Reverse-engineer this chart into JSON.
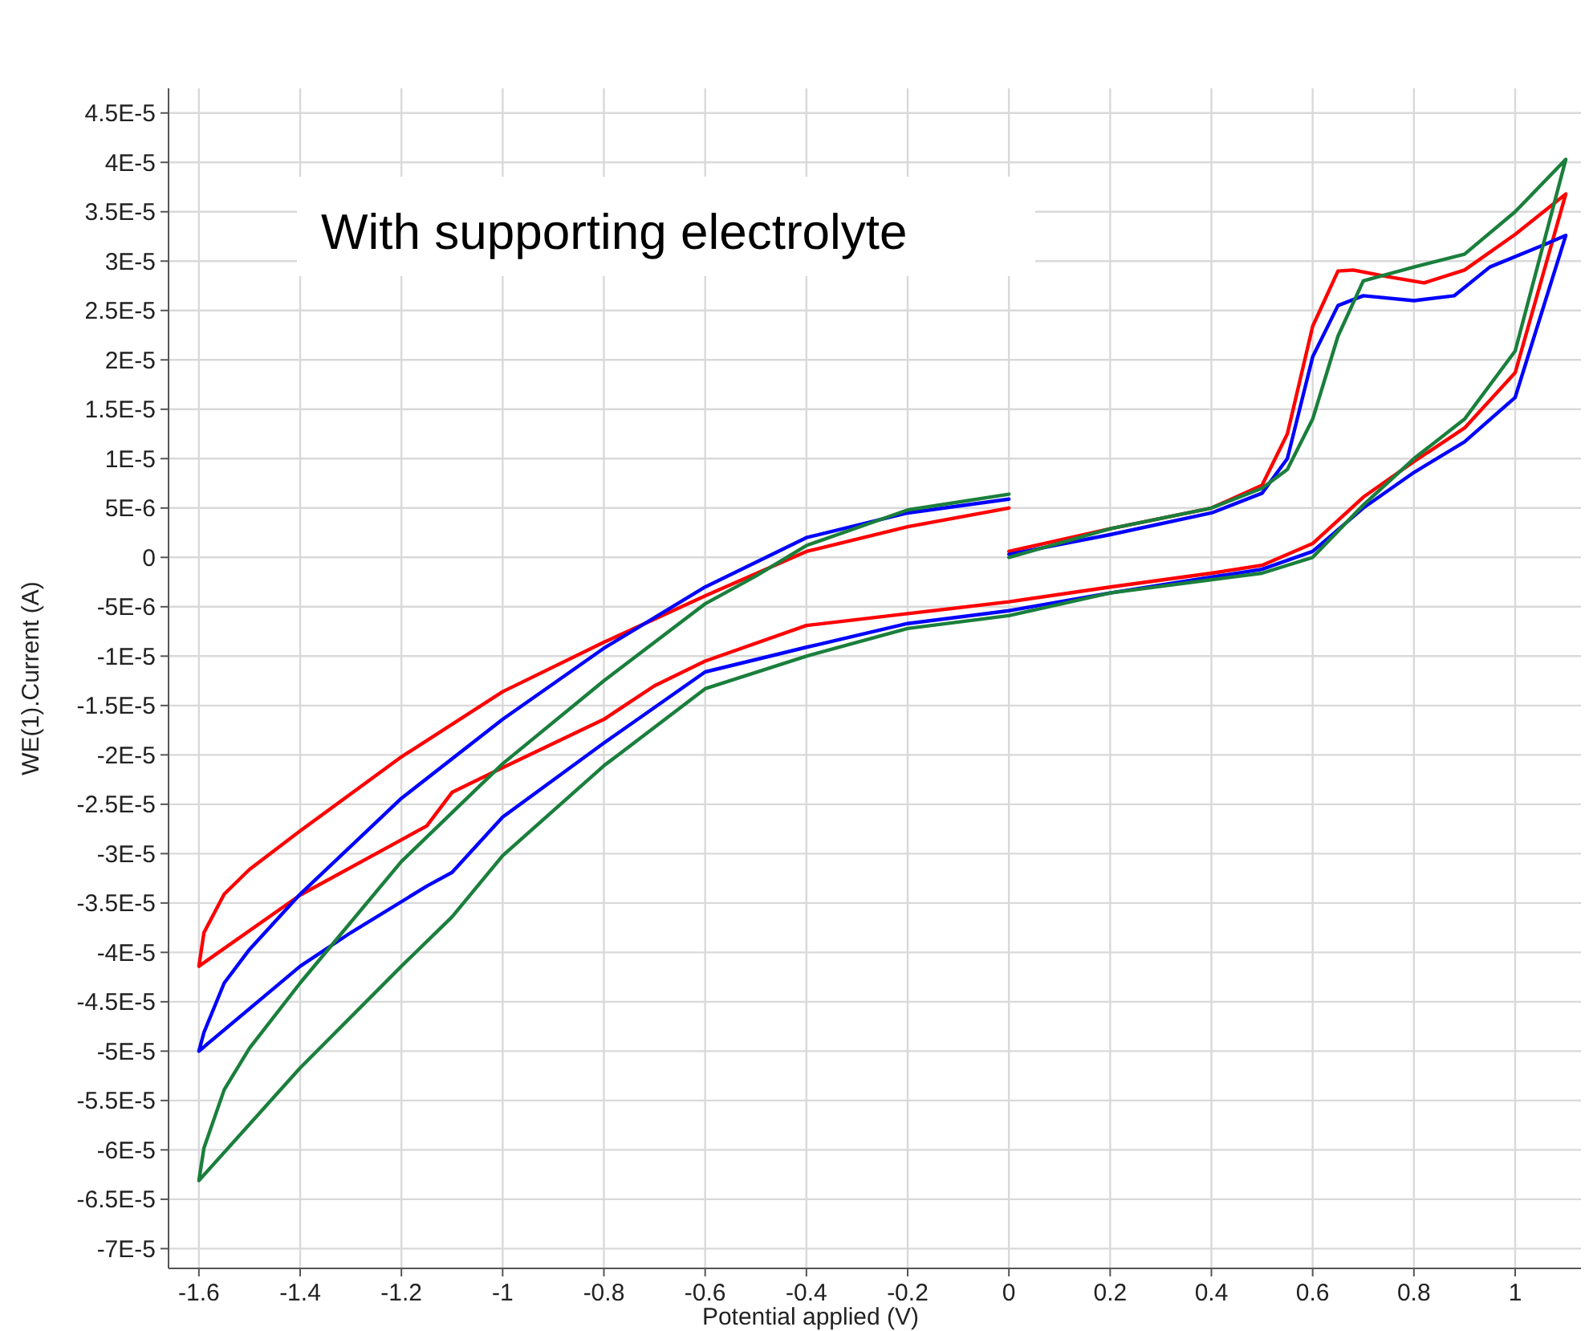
{
  "chart_data": {
    "type": "line",
    "xlabel": "Potential applied (V)",
    "ylabel": "WE(1).Current (A)",
    "annotations": [
      "With supporting electrolyte"
    ],
    "xlim": [
      -1.66,
      1.13
    ],
    "ylim": [
      -7.2e-05,
      4.75e-05
    ],
    "xticks": [
      -1.6,
      -1.4,
      -1.2,
      -1,
      -0.8,
      -0.6,
      -0.4,
      -0.2,
      0,
      0.2,
      0.4,
      0.6,
      0.8,
      1
    ],
    "yticks": [
      {
        "value": 4.5e-05,
        "label": "4.5E-5"
      },
      {
        "value": 4e-05,
        "label": "4E-5"
      },
      {
        "value": 3.5e-05,
        "label": "3.5E-5"
      },
      {
        "value": 3e-05,
        "label": "3E-5"
      },
      {
        "value": 2.5e-05,
        "label": "2.5E-5"
      },
      {
        "value": 2e-05,
        "label": "2E-5"
      },
      {
        "value": 1.5e-05,
        "label": "1.5E-5"
      },
      {
        "value": 1e-05,
        "label": "1E-5"
      },
      {
        "value": 5e-06,
        "label": "5E-6"
      },
      0,
      {
        "value": -5e-06,
        "label": "-5E-6"
      },
      {
        "value": -1e-05,
        "label": "-1E-5"
      },
      {
        "value": -1.5e-05,
        "label": "-1.5E-5"
      },
      {
        "value": -2e-05,
        "label": "-2E-5"
      },
      {
        "value": -2.5e-05,
        "label": "-2.5E-5"
      },
      {
        "value": -3e-05,
        "label": "-3E-5"
      },
      {
        "value": -3.5e-05,
        "label": "-3.5E-5"
      },
      {
        "value": -4e-05,
        "label": "-4E-5"
      },
      {
        "value": -4.5e-05,
        "label": "-4.5E-5"
      },
      {
        "value": -5e-05,
        "label": "-5E-5"
      },
      {
        "value": -5.5e-05,
        "label": "-5.5E-5"
      },
      {
        "value": -6e-05,
        "label": "-6E-5"
      },
      {
        "value": -6.5e-05,
        "label": "-6.5E-5"
      },
      {
        "value": -7e-05,
        "label": "-7E-5"
      }
    ],
    "grid": true,
    "marker": "none",
    "line_style": "solid",
    "series": [
      {
        "color": "#ff0000",
        "x": [
          0,
          0.2,
          0.4,
          0.5,
          0.55,
          0.6,
          0.65,
          0.68,
          0.75,
          0.82,
          0.9,
          1.0,
          1.1,
          1.0,
          0.9,
          0.8,
          0.7,
          0.6,
          0.5,
          0.4,
          0.2,
          0,
          -0.2,
          -0.4,
          -0.6,
          -0.7,
          -0.8,
          -1.0,
          -1.1,
          -1.15,
          -1.2,
          -1.4,
          -1.6,
          -1.59,
          -1.55,
          -1.5,
          -1.4,
          -1.2,
          -1.0,
          -0.8,
          -0.6,
          -0.4,
          -0.2,
          0
        ],
        "values": [
          6e-07,
          2.9e-06,
          5e-06,
          7.3e-06,
          1.25e-05,
          2.34e-05,
          2.9e-05,
          2.91e-05,
          2.84e-05,
          2.78e-05,
          2.91e-05,
          3.27e-05,
          3.68e-05,
          1.87e-05,
          1.31e-05,
          9.7e-06,
          6.1e-06,
          1.4e-06,
          -8e-07,
          -1.6e-06,
          -3e-06,
          -4.5e-06,
          -5.7e-06,
          -6.9e-06,
          -1.05e-05,
          -1.3e-05,
          -1.64e-05,
          -2.13e-05,
          -2.38e-05,
          -2.72e-05,
          -2.86e-05,
          -3.42e-05,
          -4.14e-05,
          -3.8e-05,
          -3.41e-05,
          -3.16e-05,
          -2.77e-05,
          -2.02e-05,
          -1.36e-05,
          -8.6e-06,
          -3.9e-06,
          6e-07,
          3.1e-06,
          5e-06
        ]
      },
      {
        "color": "#0000ff",
        "x": [
          0,
          0.2,
          0.4,
          0.5,
          0.55,
          0.6,
          0.65,
          0.7,
          0.8,
          0.88,
          0.95,
          1.05,
          1.1,
          1.0,
          0.9,
          0.8,
          0.7,
          0.6,
          0.5,
          0.2,
          0,
          -0.2,
          -0.4,
          -0.6,
          -0.8,
          -1.0,
          -1.1,
          -1.15,
          -1.3,
          -1.4,
          -1.6,
          -1.59,
          -1.55,
          -1.5,
          -1.4,
          -1.2,
          -1.0,
          -0.8,
          -0.6,
          -0.4,
          -0.2,
          0
        ],
        "values": [
          3e-07,
          2.3e-06,
          4.5e-06,
          6.5e-06,
          1e-05,
          2.03e-05,
          2.55e-05,
          2.65e-05,
          2.6e-05,
          2.65e-05,
          2.94e-05,
          3.15e-05,
          3.26e-05,
          1.62e-05,
          1.17e-05,
          8.6e-06,
          5e-06,
          6e-07,
          -1.2e-06,
          -3.6e-06,
          -5.4e-06,
          -6.7e-06,
          -9.1e-06,
          -1.16e-05,
          -1.88e-05,
          -2.63e-05,
          -3.19e-05,
          -3.33e-05,
          -3.8e-05,
          -4.14e-05,
          -5e-05,
          -4.81e-05,
          -4.31e-05,
          -3.97e-05,
          -3.41e-05,
          -2.44e-05,
          -1.64e-05,
          -9.2e-06,
          -3e-06,
          2e-06,
          4.5e-06,
          5.9e-06
        ]
      },
      {
        "color": "#1a7f3c",
        "x": [
          0,
          0.2,
          0.4,
          0.5,
          0.55,
          0.6,
          0.65,
          0.7,
          0.8,
          0.9,
          1.0,
          1.1,
          1.0,
          0.9,
          0.8,
          0.7,
          0.6,
          0.5,
          0.2,
          0,
          -0.2,
          -0.4,
          -0.6,
          -0.8,
          -1.0,
          -1.1,
          -1.2,
          -1.4,
          -1.6,
          -1.59,
          -1.55,
          -1.5,
          -1.4,
          -1.2,
          -1.0,
          -0.8,
          -0.6,
          -0.5,
          -0.4,
          -0.2,
          0
        ],
        "values": [
          0,
          2.9e-06,
          5e-06,
          7e-06,
          8.9e-06,
          1.4e-05,
          2.24e-05,
          2.8e-05,
          2.94e-05,
          3.07e-05,
          3.5e-05,
          4.03e-05,
          2.09e-05,
          1.4e-05,
          1e-05,
          5.3e-06,
          0,
          -1.6e-06,
          -3.6e-06,
          -5.9e-06,
          -7.2e-06,
          -1e-05,
          -1.33e-05,
          -2.11e-05,
          -3.02e-05,
          -3.64e-05,
          -4.14e-05,
          -5.17e-05,
          -6.31e-05,
          -5.98e-05,
          -5.39e-05,
          -4.97e-05,
          -4.31e-05,
          -3.08e-05,
          -2.09e-05,
          -1.25e-05,
          -4.7e-06,
          -1.9e-06,
          1.2e-06,
          4.8e-06,
          6.4e-06
        ]
      }
    ]
  }
}
